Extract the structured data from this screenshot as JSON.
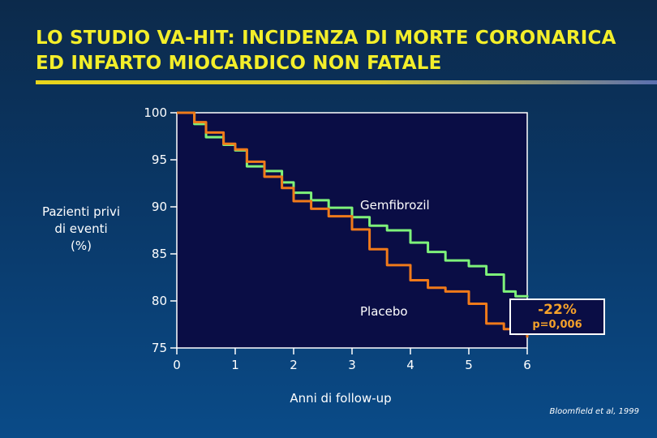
{
  "slide": {
    "title_line1": "LO STUDIO VA-HIT: INCIDENZA DI MORTE CORONARICA",
    "title_line2": "ED INFARTO MIOCARDICO NON FATALE",
    "ylabel_lines": [
      "Pazienti privi",
      "di eventi",
      "(%)"
    ],
    "xlabel": "Anni di follow-up",
    "source": "Bloomfield et al, 1999",
    "result_percent": "-22%",
    "result_p": "p=0,006"
  },
  "colors": {
    "title": "#f3ee2a",
    "plot_bg": "#0a0d45",
    "gemfibrozil": "#7ef27a",
    "placebo": "#f07a1a",
    "result_text": "#f4a12a"
  },
  "chart_data": {
    "type": "line",
    "xlabel": "Anni di follow-up",
    "ylabel": "Pazienti privi di eventi (%)",
    "xlim": [
      0,
      6
    ],
    "ylim": [
      75,
      100
    ],
    "x_ticks": [
      "0",
      "1",
      "2",
      "3",
      "4",
      "5",
      "6"
    ],
    "y_ticks": [
      "75",
      "80",
      "85",
      "90",
      "95",
      "100"
    ],
    "grid": false,
    "series": [
      {
        "name": "Gemfibrozil",
        "x": [
          0,
          0.3,
          0.5,
          0.8,
          1.0,
          1.2,
          1.5,
          1.8,
          2.0,
          2.3,
          2.6,
          3.0,
          3.3,
          3.6,
          4.0,
          4.3,
          4.6,
          5.0,
          5.3,
          5.6,
          5.8,
          6.0
        ],
        "y": [
          100,
          98.8,
          97.4,
          96.6,
          96.0,
          94.3,
          93.8,
          92.6,
          91.5,
          90.7,
          89.9,
          88.9,
          88.0,
          87.5,
          86.2,
          85.2,
          84.3,
          83.7,
          82.8,
          81.0,
          80.5,
          80.4
        ]
      },
      {
        "name": "Placebo",
        "x": [
          0,
          0.3,
          0.5,
          0.8,
          1.0,
          1.2,
          1.5,
          1.8,
          2.0,
          2.3,
          2.6,
          3.0,
          3.3,
          3.6,
          4.0,
          4.3,
          4.6,
          5.0,
          5.3,
          5.6,
          5.8,
          6.0
        ],
        "y": [
          100,
          99.0,
          97.9,
          96.7,
          96.1,
          94.8,
          93.2,
          92.0,
          90.6,
          89.8,
          89.0,
          87.6,
          85.5,
          83.8,
          82.2,
          81.4,
          81.0,
          79.7,
          77.6,
          77.0,
          76.5,
          76.1
        ]
      }
    ],
    "annotations": [
      "Gemfibrozil",
      "Placebo"
    ]
  }
}
